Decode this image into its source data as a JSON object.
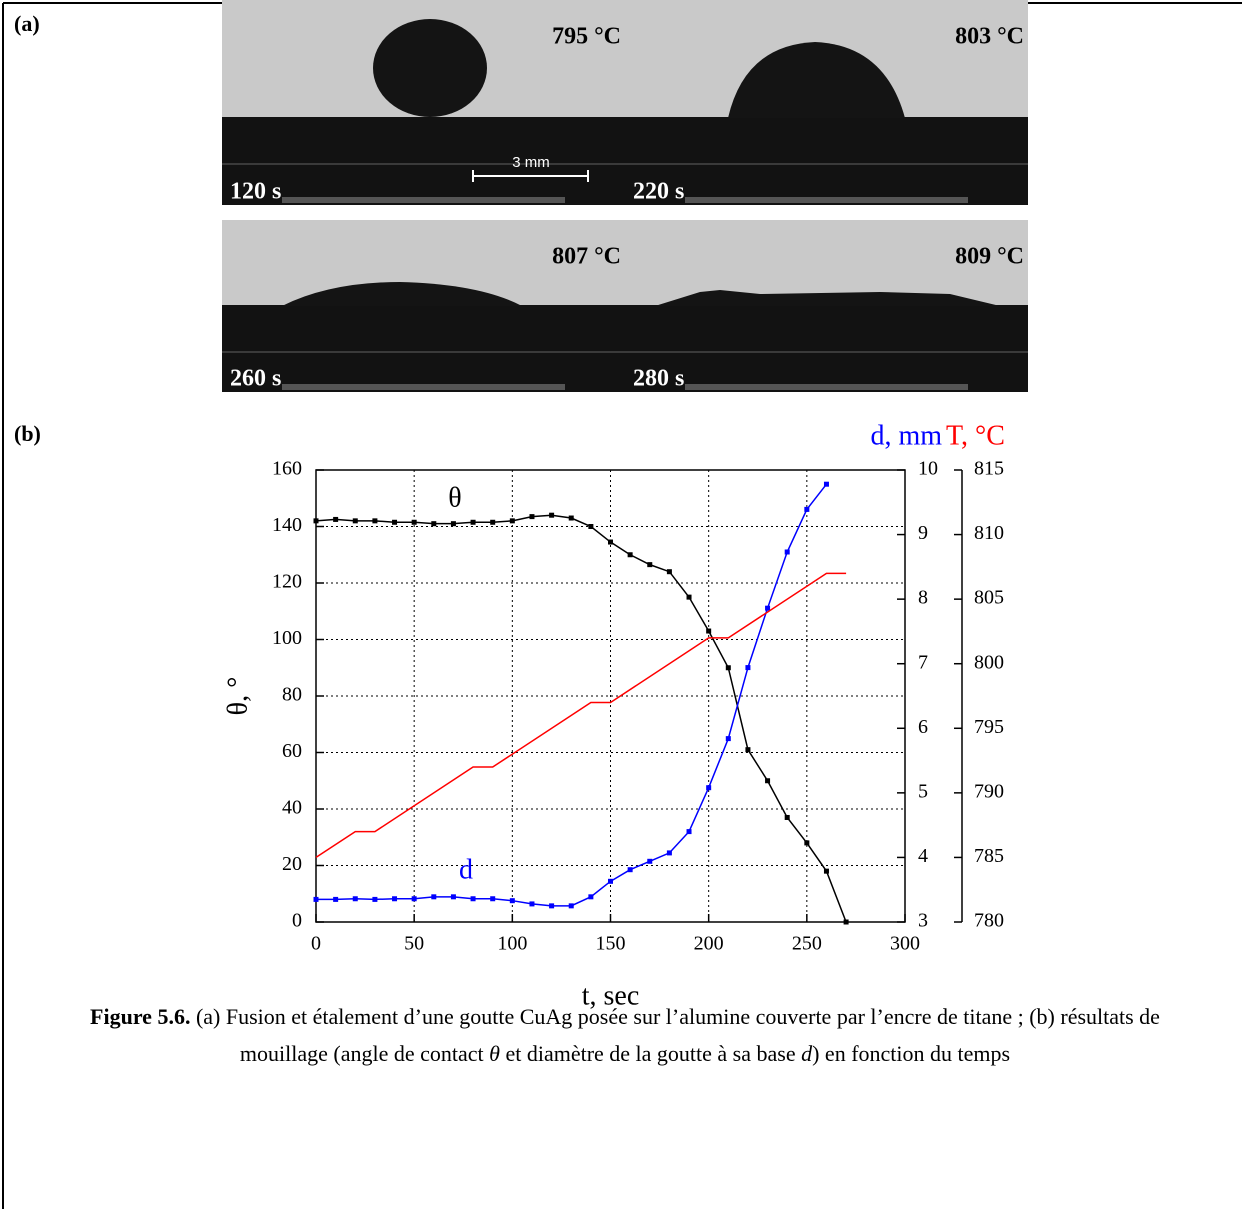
{
  "panel_labels": [
    "(a)",
    "(b)"
  ],
  "photos": [
    {
      "temperature": "795 °C",
      "time": "120 s"
    },
    {
      "temperature": "803 °C",
      "time": "220 s"
    },
    {
      "temperature": "807 °C",
      "time": "260 s"
    },
    {
      "temperature": "809 °C",
      "time": "280 s"
    }
  ],
  "scale_bar": "3 mm",
  "chart_data": {
    "type": "line",
    "x_label": "t, sec",
    "y_label": "θ, °",
    "y2_label": "d, mm",
    "y3_label": "T, °C",
    "xlim": [
      0,
      300
    ],
    "xticks": [
      0,
      50,
      100,
      150,
      200,
      250,
      300
    ],
    "ylim": [
      0,
      160
    ],
    "yticks": [
      0,
      20,
      40,
      60,
      80,
      100,
      120,
      140,
      160
    ],
    "y2lim": [
      3,
      10
    ],
    "y2ticks": [
      3,
      4,
      5,
      6,
      7,
      8,
      9,
      10
    ],
    "y3lim": [
      780,
      815
    ],
    "y3ticks": [
      780,
      785,
      790,
      795,
      800,
      805,
      810,
      815
    ],
    "grid": true,
    "series": [
      {
        "name": "θ",
        "color": "#000000",
        "axis": "y",
        "markers": true,
        "x": [
          0,
          10,
          20,
          30,
          40,
          50,
          60,
          70,
          80,
          90,
          100,
          110,
          120,
          130,
          140,
          150,
          160,
          170,
          180,
          190,
          200,
          210,
          220,
          230,
          240,
          250,
          260,
          270
        ],
        "values": [
          142,
          142.5,
          142,
          142,
          141.5,
          141.5,
          141,
          141,
          141.5,
          141.5,
          142,
          143.5,
          144,
          143,
          140,
          134.5,
          130,
          126.5,
          124,
          115,
          103,
          90,
          61,
          50,
          37,
          28,
          18,
          0
        ]
      },
      {
        "name": "d",
        "color": "#0000ff",
        "axis": "y2",
        "markers": true,
        "x": [
          0,
          10,
          20,
          30,
          40,
          50,
          60,
          70,
          80,
          90,
          100,
          110,
          120,
          130,
          140,
          150,
          160,
          170,
          180,
          190,
          200,
          210,
          220,
          230,
          240,
          250,
          260
        ],
        "values": [
          3.35,
          3.35,
          3.36,
          3.35,
          3.36,
          3.36,
          3.39,
          3.39,
          3.36,
          3.36,
          3.33,
          3.28,
          3.25,
          3.25,
          3.39,
          3.63,
          3.81,
          3.94,
          4.07,
          4.4,
          5.08,
          5.84,
          6.94,
          7.86,
          8.73,
          9.39,
          9.78
        ]
      },
      {
        "color": "#ff0000",
        "axis": "y3",
        "markers": false,
        "x": [
          0,
          20,
          30,
          80,
          90,
          140,
          150,
          200,
          210,
          260,
          270
        ],
        "values": [
          785,
          787,
          787,
          792,
          792,
          797,
          797,
          802,
          802,
          807,
          807
        ]
      }
    ]
  },
  "caption": {
    "label": "Figure 5.6.",
    "parts": [
      "(a) Fusion et étalement d’une goutte CuAg posée sur l’alumine couverte par l’encre de titane ; (b) résultats de mouillage (angle de contact ",
      "θ",
      " et diamètre de la goutte à sa base ",
      "d",
      ") en fonction du temps"
    ]
  }
}
